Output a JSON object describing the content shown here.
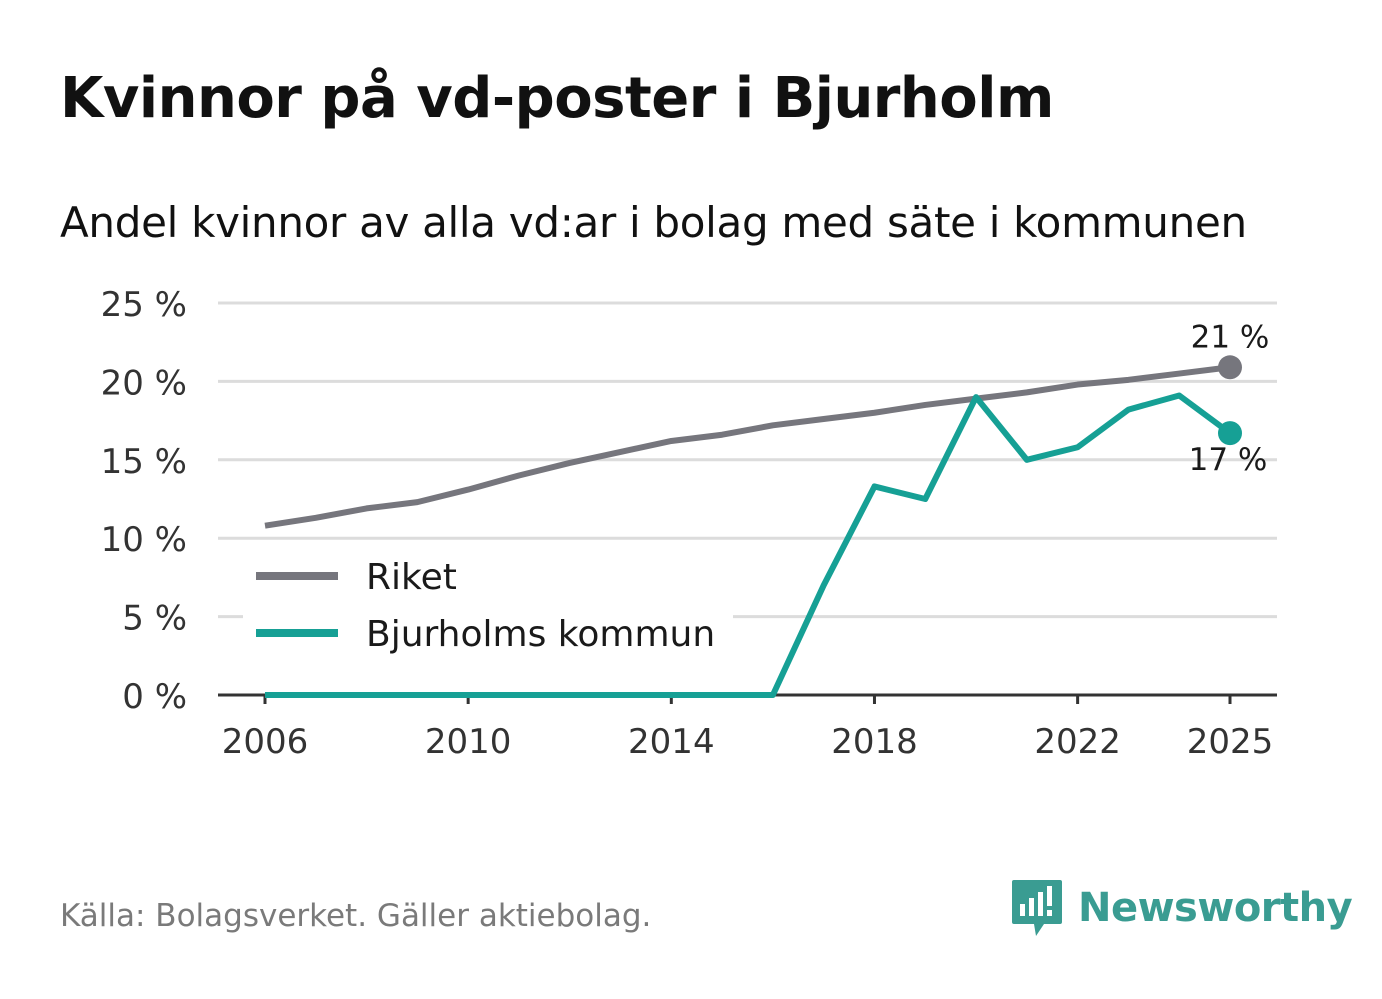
{
  "header": {
    "title": "Kvinnor på vd-poster i Bjurholm",
    "subtitle": "Andel kvinnor av alla vd:ar i bolag med säte i kommunen"
  },
  "footer": {
    "source": "Källa: Bolagsverket. Gäller aktiebolag.",
    "brand": "Newsworthy"
  },
  "colors": {
    "riket": "#76767d",
    "kommun": "#16a095",
    "grid": "#dcdcdc",
    "axis": "#333333",
    "brand": "#3a9c92"
  },
  "chart_data": {
    "type": "line",
    "title": "Andel kvinnor av alla vd:ar i bolag med säte i kommunen",
    "xlabel": "",
    "ylabel": "",
    "x": [
      2006,
      2007,
      2008,
      2009,
      2010,
      2011,
      2012,
      2013,
      2014,
      2015,
      2016,
      2017,
      2018,
      2019,
      2020,
      2021,
      2022,
      2023,
      2024,
      2025
    ],
    "xticks": [
      "2006",
      "2010",
      "2014",
      "2018",
      "2022",
      "2025"
    ],
    "ylim": [
      0,
      25
    ],
    "yticks": [
      "0 %",
      "5 %",
      "10 %",
      "15 %",
      "20 %",
      "25 %"
    ],
    "ytick_values": [
      0,
      5,
      10,
      15,
      20,
      25
    ],
    "grid": true,
    "legend_position": "bottom-left",
    "series": [
      {
        "name": "Riket",
        "values": [
          10.8,
          11.3,
          11.9,
          12.3,
          13.1,
          14.0,
          14.8,
          15.5,
          16.2,
          16.6,
          17.2,
          17.6,
          18.0,
          18.5,
          18.9,
          19.3,
          19.8,
          20.1,
          20.5,
          20.9
        ],
        "end_label": "21 %"
      },
      {
        "name": "Bjurholms kommun",
        "values": [
          0,
          0,
          0,
          0,
          0,
          0,
          0,
          0,
          0,
          0,
          0,
          7.0,
          13.3,
          12.5,
          19.0,
          15.0,
          15.8,
          18.2,
          19.1,
          16.7
        ],
        "end_label": "17 %"
      }
    ]
  }
}
